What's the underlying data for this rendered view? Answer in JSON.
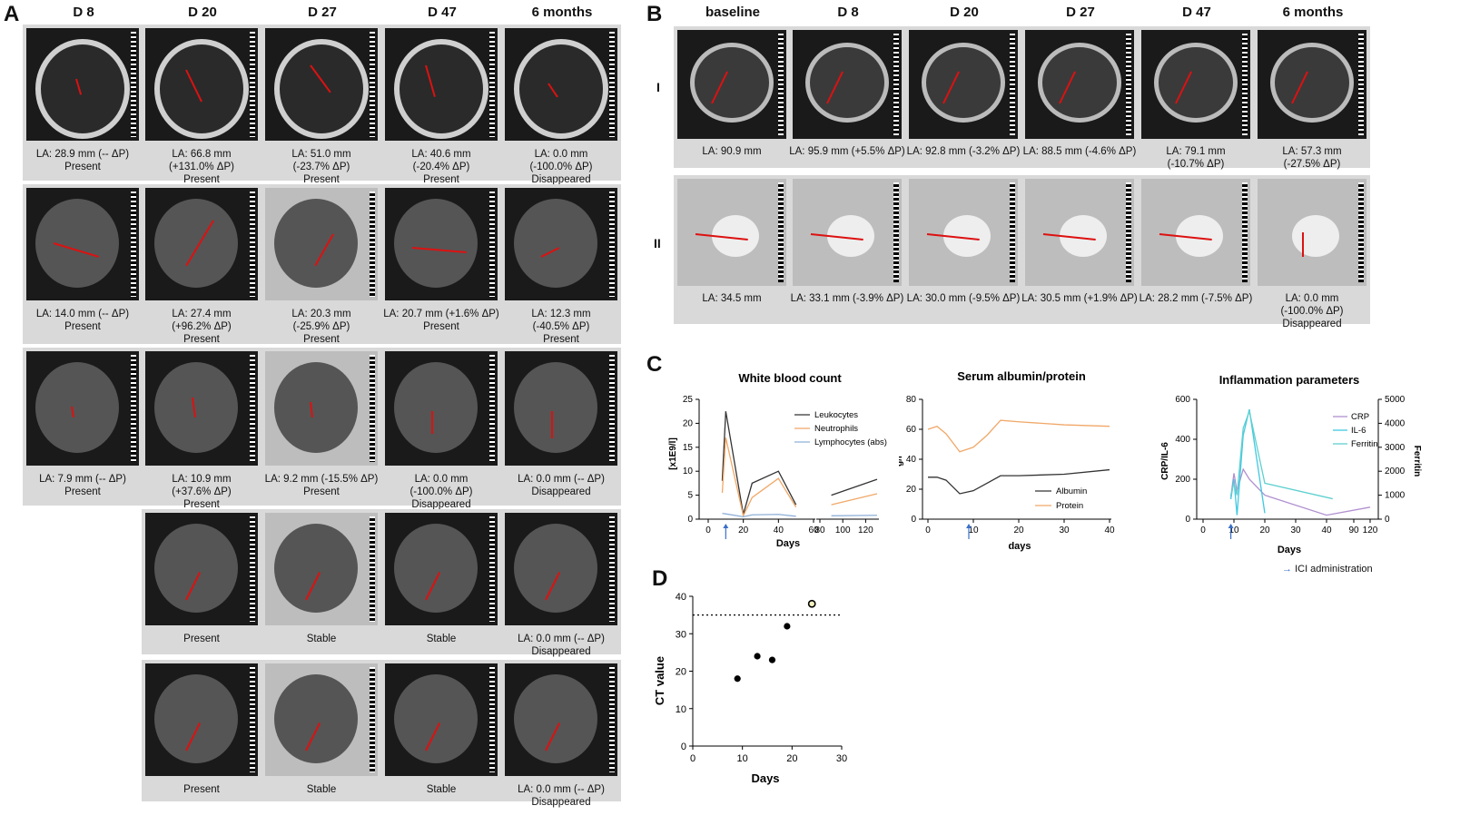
{
  "panelA": {
    "letter": "A",
    "columns": [
      "D 8",
      "D 20",
      "D 27",
      "D 47",
      "6 months"
    ],
    "rows": [
      [
        "LA: 28.9 mm (-- ΔP)\nPresent",
        "LA: 66.8 mm\n(+131.0% ΔP)\nPresent",
        "LA: 51.0 mm\n(-23.7% ΔP)\nPresent",
        "LA: 40.6 mm\n(-20.4% ΔP)\nPresent",
        "LA: 0.0 mm\n(-100.0% ΔP)\nDisappeared"
      ],
      [
        "LA: 14.0 mm (-- ΔP)\nPresent",
        "LA: 27.4 mm\n(+96.2% ΔP)\nPresent",
        "LA: 20.3 mm\n(-25.9% ΔP)\nPresent",
        "LA: 20.7 mm (+1.6% ΔP)\nPresent",
        "LA: 12.3 mm\n(-40.5% ΔP)\nPresent"
      ],
      [
        "LA: 7.9 mm (-- ΔP)\nPresent",
        "LA: 10.9 mm\n(+37.6% ΔP)\nPresent",
        "LA: 9.2 mm (-15.5% ΔP)\nPresent",
        "LA: 0.0 mm\n(-100.0% ΔP)\nDisappeared",
        "LA: 0.0 mm (-- ΔP)\nDisappeared"
      ],
      [
        null,
        "Present",
        "Stable",
        "Stable",
        "LA: 0.0 mm (-- ΔP)\nDisappeared"
      ],
      [
        null,
        "Present",
        "Stable",
        "Stable",
        "LA: 0.0 mm (-- ΔP)\nDisappeared"
      ]
    ]
  },
  "panelB": {
    "letter": "B",
    "columns": [
      "baseline",
      "D 8",
      "D 20",
      "D 27",
      "D 47",
      "6 months"
    ],
    "row_labels": [
      "I",
      "II"
    ],
    "rows": [
      [
        "LA: 90.9 mm",
        "LA: 95.9 mm (+5.5% ΔP)",
        "LA: 92.8 mm (-3.2% ΔP)",
        "LA: 88.5 mm (-4.6% ΔP)",
        "LA: 79.1 mm\n(-10.7% ΔP)",
        "LA: 57.3 mm\n(-27.5% ΔP)"
      ],
      [
        "LA: 34.5 mm",
        "LA: 33.1 mm (-3.9% ΔP)",
        "LA: 30.0 mm (-9.5% ΔP)",
        "LA: 30.5 mm (+1.9% ΔP)",
        "LA: 28.2 mm (-7.5% ΔP)",
        "LA: 0.0 mm\n(-100.0% ΔP)\nDisappeared"
      ]
    ]
  },
  "panelC": {
    "letter": "C",
    "legend_note": "ICI administration",
    "accent_colors": {
      "leukocytes": "#333333",
      "neutrophils": "#f0a868",
      "lymphocytes": "#8fb0d8",
      "albumin": "#333333",
      "protein": "#f0a868",
      "crp": "#b090d0",
      "il6": "#40c8e0",
      "ferritin": "#60d0d0",
      "arrow": "#3a6fc8"
    }
  },
  "chart_data": [
    {
      "type": "line",
      "title": "White blood count",
      "xlabel": "Days",
      "ylabel": "[x1E9/l]",
      "ylim": [
        0,
        25
      ],
      "xticks": [
        "0",
        "20",
        "40",
        "60",
        "80",
        "100",
        "120"
      ],
      "yticks": [
        "0",
        "5",
        "10",
        "15",
        "20",
        "25"
      ],
      "series": [
        {
          "name": "Leukocytes",
          "x": [
            8,
            10,
            20,
            25,
            40,
            50,
            90,
            130
          ],
          "y": [
            8,
            22.5,
            1,
            7.5,
            10,
            3,
            5,
            8.3
          ]
        },
        {
          "name": "Neutrophils",
          "x": [
            8,
            10,
            20,
            25,
            40,
            50,
            90,
            130
          ],
          "y": [
            5.5,
            17,
            0.7,
            4.5,
            8.5,
            2.5,
            3,
            5.3
          ]
        },
        {
          "name": "Lymphocytes (abs)",
          "x": [
            8,
            10,
            20,
            25,
            40,
            50,
            90,
            130
          ],
          "y": [
            1.2,
            1.1,
            0.5,
            0.9,
            1,
            0.6,
            0.7,
            0.8
          ]
        }
      ]
    },
    {
      "type": "line",
      "title": "Serum albumin/protein",
      "xlabel": "days",
      "ylabel": "g/l",
      "ylim": [
        0,
        80
      ],
      "xticks": [
        "0",
        "10",
        "20",
        "30",
        "40"
      ],
      "yticks": [
        "0",
        "20",
        "40",
        "60",
        "80"
      ],
      "series": [
        {
          "name": "Albumin",
          "x": [
            0,
            2,
            4,
            7,
            10,
            13,
            16,
            20,
            30,
            40
          ],
          "y": [
            28,
            28,
            26,
            17,
            19,
            24,
            29,
            29,
            30,
            33
          ]
        },
        {
          "name": "Protein",
          "x": [
            0,
            2,
            4,
            7,
            10,
            13,
            16,
            20,
            30,
            40
          ],
          "y": [
            60,
            62,
            57,
            45,
            48,
            56,
            66,
            65,
            63,
            62
          ]
        }
      ]
    },
    {
      "type": "line",
      "title": "Inflammation parameters",
      "xlabel": "Days",
      "ylabel": "CRP/IL-6",
      "y2label": "Ferritin",
      "ylim": [
        0,
        600
      ],
      "y2lim": [
        0,
        5000
      ],
      "xticks": [
        "0",
        "10",
        "20",
        "30",
        "40",
        "90",
        "120"
      ],
      "yticks": [
        "0",
        "200",
        "400",
        "600"
      ],
      "y2ticks": [
        "0",
        "1000",
        "2000",
        "3000",
        "4000",
        "5000"
      ],
      "series": [
        {
          "name": "CRP",
          "x": [
            9,
            10,
            11,
            13,
            15,
            20,
            40,
            120
          ],
          "y": [
            110,
            230,
            140,
            250,
            200,
            120,
            20,
            60
          ]
        },
        {
          "name": "IL-6",
          "x": [
            9,
            10,
            11,
            13,
            15,
            20
          ],
          "y": [
            100,
            200,
            20,
            420,
            550,
            30
          ]
        },
        {
          "name": "Ferritin",
          "x": [
            9,
            10,
            11,
            13,
            15,
            20,
            42
          ],
          "y2": [
            1000,
            1500,
            1000,
            3800,
            4500,
            1500,
            850
          ]
        }
      ]
    },
    {
      "type": "scatter",
      "panel": "D",
      "xlabel": "Days",
      "ylabel": "CT value",
      "xlim": [
        0,
        30
      ],
      "ylim": [
        0,
        40
      ],
      "xticks": [
        "0",
        "10",
        "20",
        "30"
      ],
      "yticks": [
        "0",
        "10",
        "20",
        "30",
        "40"
      ],
      "threshold": 35,
      "points": [
        {
          "x": 9,
          "y": 18,
          "filled": true
        },
        {
          "x": 13,
          "y": 24,
          "filled": true
        },
        {
          "x": 16,
          "y": 23,
          "filled": true
        },
        {
          "x": 19,
          "y": 32,
          "filled": true
        },
        {
          "x": 24,
          "y": 38,
          "filled": false
        }
      ]
    }
  ],
  "panelD": {
    "letter": "D"
  }
}
